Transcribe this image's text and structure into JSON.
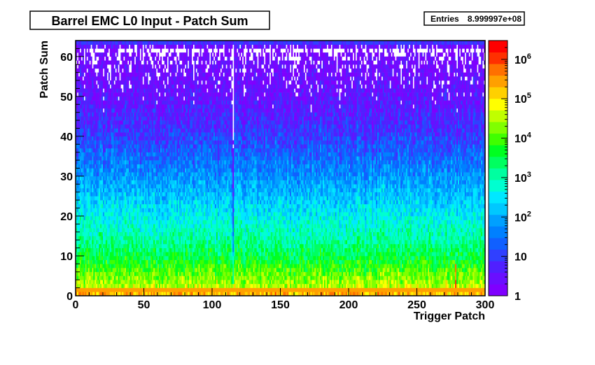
{
  "chart_data": {
    "type": "heatmap",
    "title": "Barrel EMC L0 Input - Patch Sum",
    "stats_box": {
      "label": "Entries",
      "value": "8.999997e+08"
    },
    "xlabel": "Trigger Patch",
    "ylabel": "Patch Sum",
    "xlim": [
      0,
      300
    ],
    "ylim": [
      0,
      64
    ],
    "x_ticks": [
      0,
      50,
      100,
      150,
      200,
      250,
      300
    ],
    "y_ticks": [
      0,
      10,
      20,
      30,
      40,
      50,
      60
    ],
    "z_scale": "log",
    "zlim": [
      1,
      3000000
    ],
    "z_ticks": [
      {
        "value": 1,
        "label": "1"
      },
      {
        "value": 10,
        "label": "10"
      },
      {
        "value": 100,
        "label": "10^2"
      },
      {
        "value": 1000,
        "label": "10^3"
      },
      {
        "value": 10000,
        "label": "10^4"
      },
      {
        "value": 100000,
        "label": "10^5"
      },
      {
        "value": 1000000,
        "label": "10^6"
      }
    ],
    "palette": [
      "#7f00ff",
      "#6a0fff",
      "#5020ff",
      "#3040ff",
      "#1060ff",
      "#0080ff",
      "#00a0ff",
      "#00c8ff",
      "#00e8ff",
      "#00ffd0",
      "#00ffa0",
      "#00ff60",
      "#00ff20",
      "#40ff00",
      "#80ff00",
      "#c0ff00",
      "#ffff00",
      "#ffd000",
      "#ffa000",
      "#ff7000",
      "#ff3000",
      "#ff0000"
    ],
    "profile": {
      "y_bins": [
        0,
        1,
        2,
        4,
        7,
        10,
        15,
        20,
        25,
        30,
        35,
        40,
        45,
        50,
        55,
        60,
        62,
        63
      ],
      "z_values": [
        20000,
        2000000,
        40000,
        20000,
        8000,
        3000,
        1000,
        400,
        150,
        60,
        25,
        10,
        5,
        3,
        2,
        1.5,
        0.6,
        8
      ]
    },
    "notable_features": [
      {
        "x": 115,
        "note": "light column"
      },
      {
        "x": 278,
        "note": "hot column at low sum"
      }
    ],
    "grid": false,
    "legend_placement": "right (color bar)"
  },
  "colors": {
    "frame": "#000000",
    "background": "#ffffff",
    "empty_bin": "#ffffff"
  }
}
